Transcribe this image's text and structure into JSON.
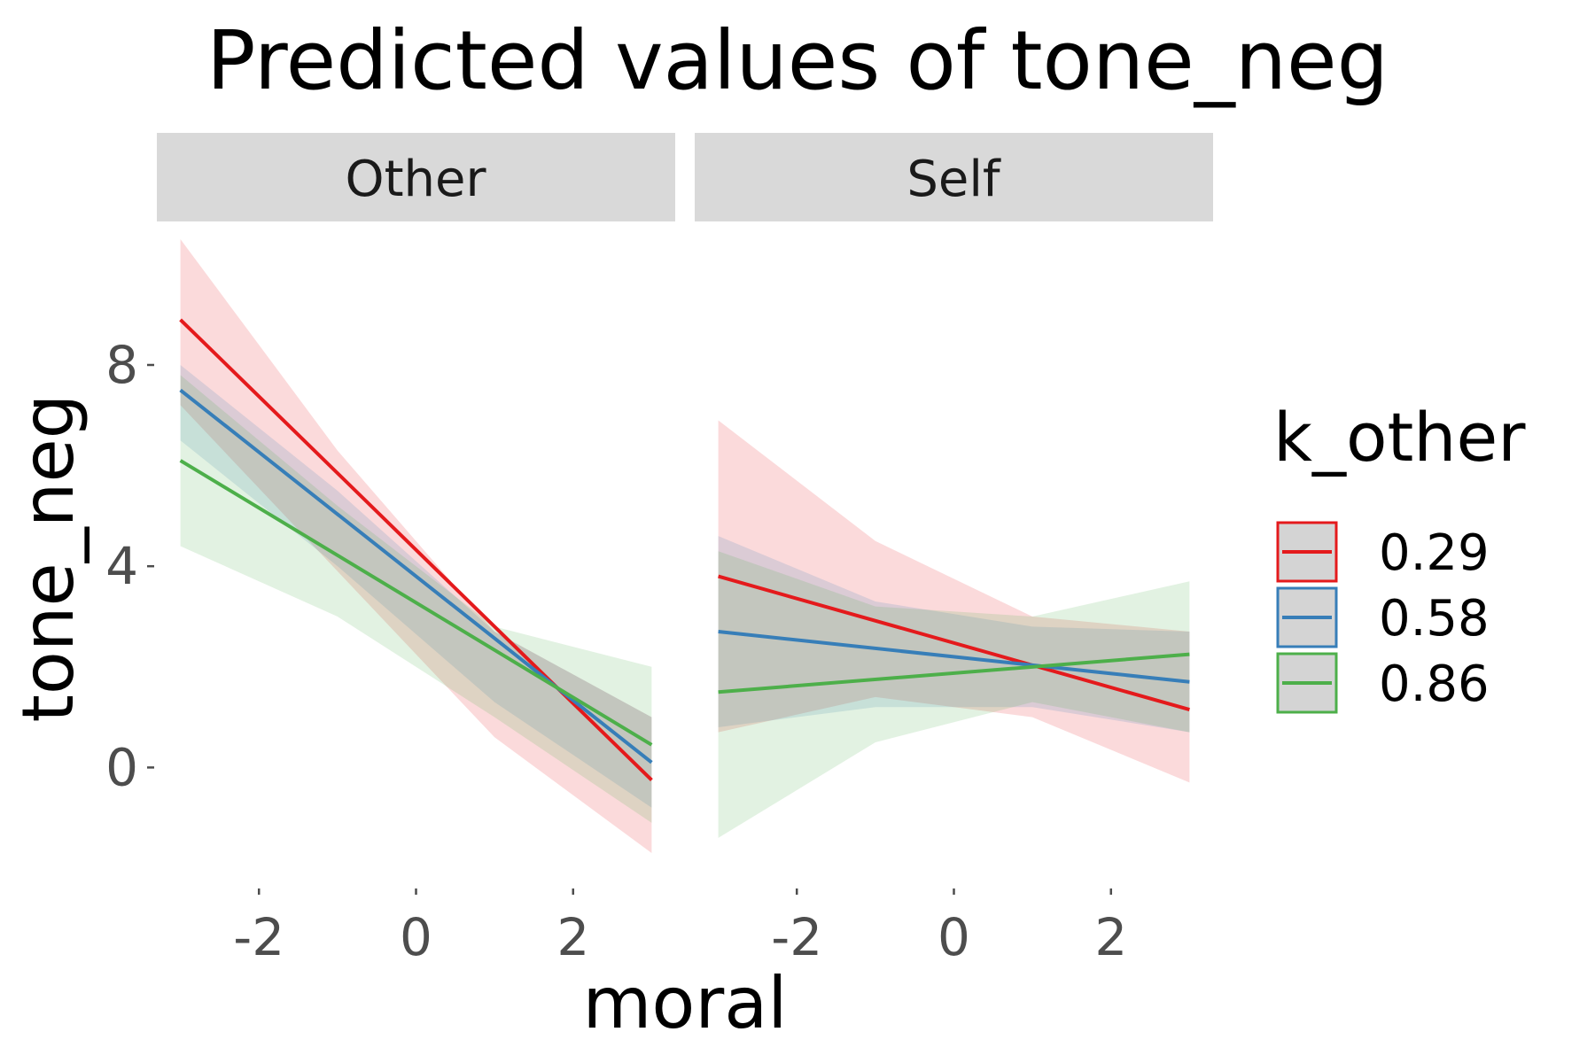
{
  "colors": {
    "0.29": "#e41a1c",
    "0.58": "#377eb8",
    "0.86": "#4daf4a",
    "strip": "#d9d9d9",
    "tick_text": "#4d4d4d"
  },
  "chart_data": {
    "type": "line",
    "title": "Predicted values of tone_neg",
    "xlabel": "moral",
    "ylabel": "tone_neg",
    "xlim": [
      -3.3,
      3.3
    ],
    "ylim": [
      -2.0,
      10.5
    ],
    "x_ticks": [
      -2,
      0,
      2
    ],
    "x_tick_labels": [
      "-2",
      "0",
      "2"
    ],
    "y_ticks": [
      0,
      4,
      8
    ],
    "y_tick_labels": [
      "0",
      "4",
      "8"
    ],
    "grid": false,
    "legend": {
      "title": "k_other",
      "placement": "right",
      "entries": [
        "0.29",
        "0.58",
        "0.86"
      ]
    },
    "panels": [
      {
        "name": "Other",
        "series": [
          {
            "name": "0.29",
            "x": [
              -3.0,
              3.0
            ],
            "y": [
              8.9,
              -0.25
            ],
            "band_x": [
              -3.0,
              -1.0,
              1.0,
              3.0
            ],
            "band_low": [
              7.2,
              3.9,
              0.6,
              -1.7
            ],
            "band_high": [
              10.5,
              6.3,
              2.7,
              1.0
            ]
          },
          {
            "name": "0.58",
            "x": [
              -3.0,
              3.0
            ],
            "y": [
              7.5,
              0.1
            ],
            "band_x": [
              -3.0,
              -1.0,
              1.0,
              3.0
            ],
            "band_low": [
              6.5,
              4.0,
              1.3,
              -0.8
            ],
            "band_high": [
              8.0,
              5.5,
              2.7,
              1.0
            ]
          },
          {
            "name": "0.86",
            "x": [
              -3.0,
              3.0
            ],
            "y": [
              6.1,
              0.45
            ],
            "band_x": [
              -3.0,
              -1.0,
              1.0,
              3.0
            ],
            "band_low": [
              4.4,
              3.0,
              1.0,
              -1.1
            ],
            "band_high": [
              7.8,
              5.2,
              2.8,
              2.0
            ]
          }
        ]
      },
      {
        "name": "Self",
        "series": [
          {
            "name": "0.29",
            "x": [
              -3.0,
              3.0
            ],
            "y": [
              3.8,
              1.15
            ],
            "band_x": [
              -3.0,
              -1.0,
              1.0,
              3.0
            ],
            "band_low": [
              0.7,
              1.4,
              1.0,
              -0.3
            ],
            "band_high": [
              6.9,
              4.5,
              3.0,
              2.7
            ]
          },
          {
            "name": "0.58",
            "x": [
              -3.0,
              3.0
            ],
            "y": [
              2.7,
              1.7
            ],
            "band_x": [
              -3.0,
              -1.0,
              1.0,
              3.0
            ],
            "band_low": [
              0.8,
              1.2,
              1.2,
              0.7
            ],
            "band_high": [
              4.6,
              3.3,
              2.8,
              2.7
            ]
          },
          {
            "name": "0.86",
            "x": [
              -3.0,
              3.0
            ],
            "y": [
              1.5,
              2.25
            ],
            "band_x": [
              -3.0,
              -1.0,
              1.0,
              3.0
            ],
            "band_low": [
              -1.4,
              0.5,
              1.3,
              0.7
            ],
            "band_high": [
              4.3,
              3.2,
              3.0,
              3.7
            ]
          }
        ]
      }
    ]
  }
}
